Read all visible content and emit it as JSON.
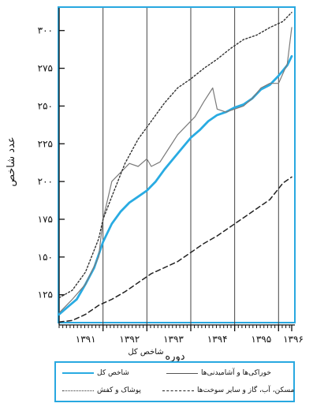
{
  "chart_data": {
    "type": "line",
    "ylabel": "عدد شاخص",
    "xlabel": "دوره",
    "x_group_label": "شاخص کل",
    "ylim": [
      105,
      315
    ],
    "yticks": [
      125,
      150,
      175,
      200,
      225,
      250,
      275,
      300
    ],
    "ytick_labels": [
      "۱۲۵",
      "۱۵۰",
      "۱۷۵",
      "۲۰۰",
      "۲۲۵",
      "۲۵۰",
      "۲۷۵",
      "۳۰۰"
    ],
    "xlim": [
      0,
      5.3
    ],
    "xticks": [
      1,
      2,
      3,
      4,
      5,
      5.3
    ],
    "xtick_labels": [
      "۱۳۹۱",
      "۱۳۹۲",
      "۱۳۹۳",
      "۱۳۹۴",
      "۱۳۹۵",
      "۱۳۹۶"
    ],
    "grid": "vertical",
    "legend_position": "bottom",
    "colors": {
      "frame": "#28a8e0",
      "axis": "#111111"
    },
    "series": [
      {
        "name": "شاخص کل",
        "color": "#29abe2",
        "style": "solid-thick",
        "x": [
          0,
          0.2,
          0.4,
          0.6,
          0.8,
          1.0,
          1.2,
          1.4,
          1.6,
          1.8,
          2.0,
          2.2,
          2.4,
          2.6,
          2.8,
          3.0,
          3.2,
          3.4,
          3.6,
          3.8,
          4.0,
          4.2,
          4.4,
          4.6,
          4.8,
          5.0,
          5.2,
          5.3
        ],
        "y": [
          112,
          117,
          122,
          132,
          143,
          160,
          172,
          180,
          186,
          190,
          194,
          200,
          208,
          215,
          222,
          229,
          234,
          240,
          244,
          246,
          249,
          251,
          255,
          261,
          264,
          270,
          277,
          283
        ]
      },
      {
        "name": "خوراکی‌ها و آشامیدنی‌ها",
        "color": "#7a7a7a",
        "style": "solid-thin",
        "x": [
          0,
          0.3,
          0.6,
          0.9,
          1.0,
          1.2,
          1.4,
          1.6,
          1.8,
          2.0,
          2.1,
          2.3,
          2.5,
          2.7,
          2.9,
          3.1,
          3.3,
          3.5,
          3.6,
          3.8,
          4.0,
          4.2,
          4.4,
          4.6,
          4.8,
          5.0,
          5.2,
          5.3
        ],
        "y": [
          113,
          122,
          132,
          150,
          175,
          200,
          206,
          212,
          210,
          215,
          210,
          213,
          222,
          231,
          237,
          243,
          253,
          262,
          248,
          246,
          248,
          250,
          255,
          262,
          265,
          265,
          278,
          302
        ]
      },
      {
        "name": "پوشاک و کفش",
        "color": "#333333",
        "style": "dotted",
        "x": [
          0,
          0.3,
          0.6,
          0.9,
          1.0,
          1.2,
          1.5,
          1.8,
          2.1,
          2.4,
          2.7,
          3.0,
          3.3,
          3.6,
          3.9,
          4.2,
          4.5,
          4.8,
          5.1,
          5.3
        ],
        "y": [
          123,
          128,
          140,
          162,
          175,
          190,
          212,
          228,
          240,
          252,
          262,
          268,
          275,
          281,
          288,
          294,
          297,
          302,
          306,
          312
        ]
      },
      {
        "name": "مسکن، آب، گاز و سایر سوخت‌ها",
        "color": "#222222",
        "style": "dashed",
        "x": [
          0,
          0.3,
          0.6,
          0.9,
          1.2,
          1.5,
          1.8,
          2.1,
          2.4,
          2.7,
          3.0,
          3.3,
          3.6,
          3.9,
          4.2,
          4.5,
          4.8,
          5.1,
          5.3
        ],
        "y": [
          107,
          108,
          112,
          118,
          122,
          127,
          133,
          139,
          143,
          147,
          153,
          159,
          164,
          170,
          176,
          182,
          188,
          199,
          203
        ]
      }
    ]
  },
  "legend": [
    {
      "label": "شاخص کل"
    },
    {
      "label": "خوراکی‌ها و آشامیدنی‌ها"
    },
    {
      "label": "پوشاک و کفش"
    },
    {
      "label": "مسکن، آب، گاز و سایر سوخت‌ها"
    }
  ]
}
